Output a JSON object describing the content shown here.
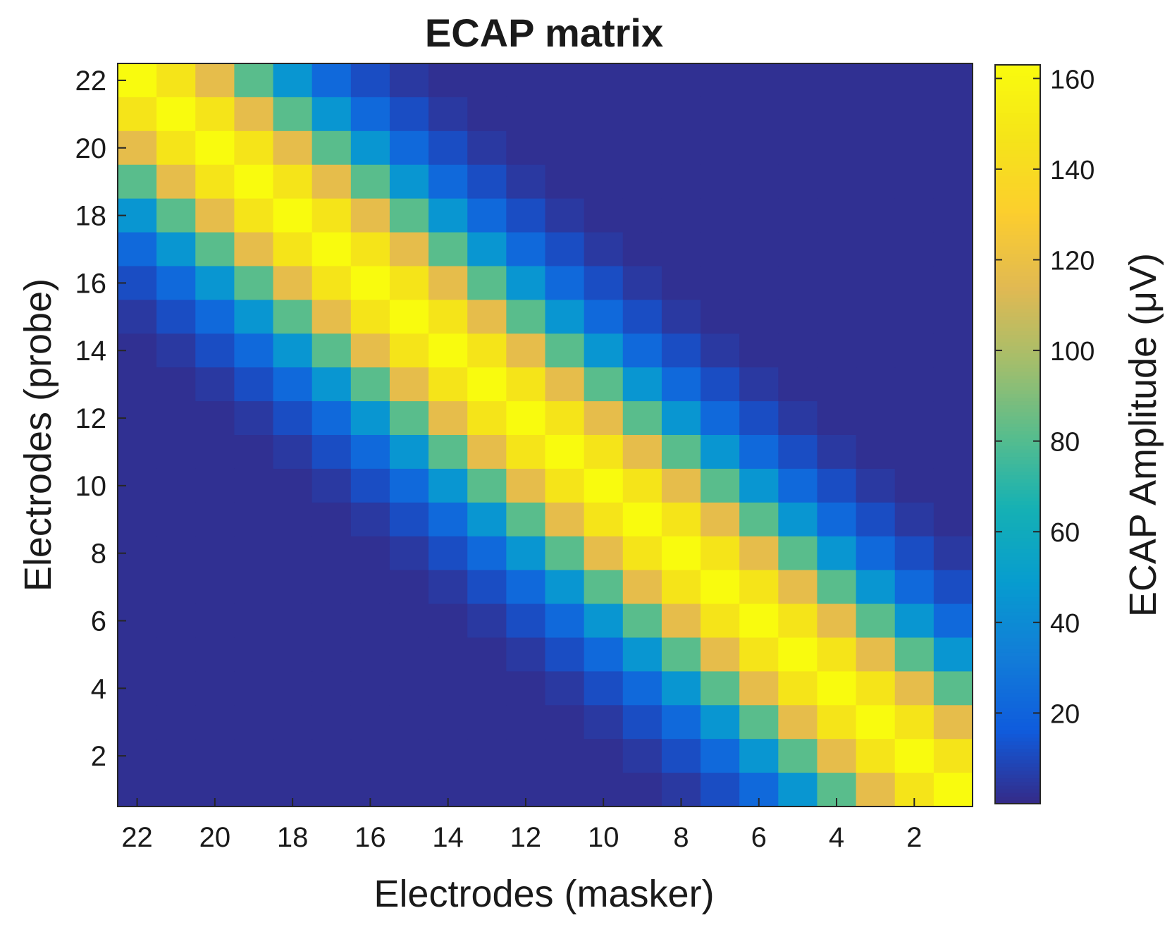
{
  "chart_data": {
    "type": "heatmap",
    "title": "ECAP matrix",
    "xlabel": "Electrodes (masker)",
    "ylabel": "Electrodes (probe)",
    "colorbar_label": "ECAP Amplitude (μV)",
    "x_values": [
      22,
      21,
      20,
      19,
      18,
      17,
      16,
      15,
      14,
      13,
      12,
      11,
      10,
      9,
      8,
      7,
      6,
      5,
      4,
      3,
      2,
      1
    ],
    "y_values": [
      22,
      21,
      20,
      19,
      18,
      17,
      16,
      15,
      14,
      13,
      12,
      11,
      10,
      9,
      8,
      7,
      6,
      5,
      4,
      3,
      2,
      1
    ],
    "x_tick_labels": [
      "22",
      "20",
      "18",
      "16",
      "14",
      "12",
      "10",
      "8",
      "6",
      "4",
      "2"
    ],
    "y_tick_labels": [
      "22",
      "20",
      "18",
      "16",
      "14",
      "12",
      "10",
      "8",
      "6",
      "4",
      "2"
    ],
    "colorbar_ticks": [
      "20",
      "40",
      "60",
      "80",
      "100",
      "120",
      "140",
      "160"
    ],
    "color_range": [
      0,
      163
    ],
    "colormap": "parula",
    "peak_amplitude": 163,
    "band_decay_factors": [
      1.0,
      0.9,
      0.72,
      0.5,
      0.28,
      0.14,
      0.07,
      0.03
    ],
    "noise_floor": 2
  }
}
